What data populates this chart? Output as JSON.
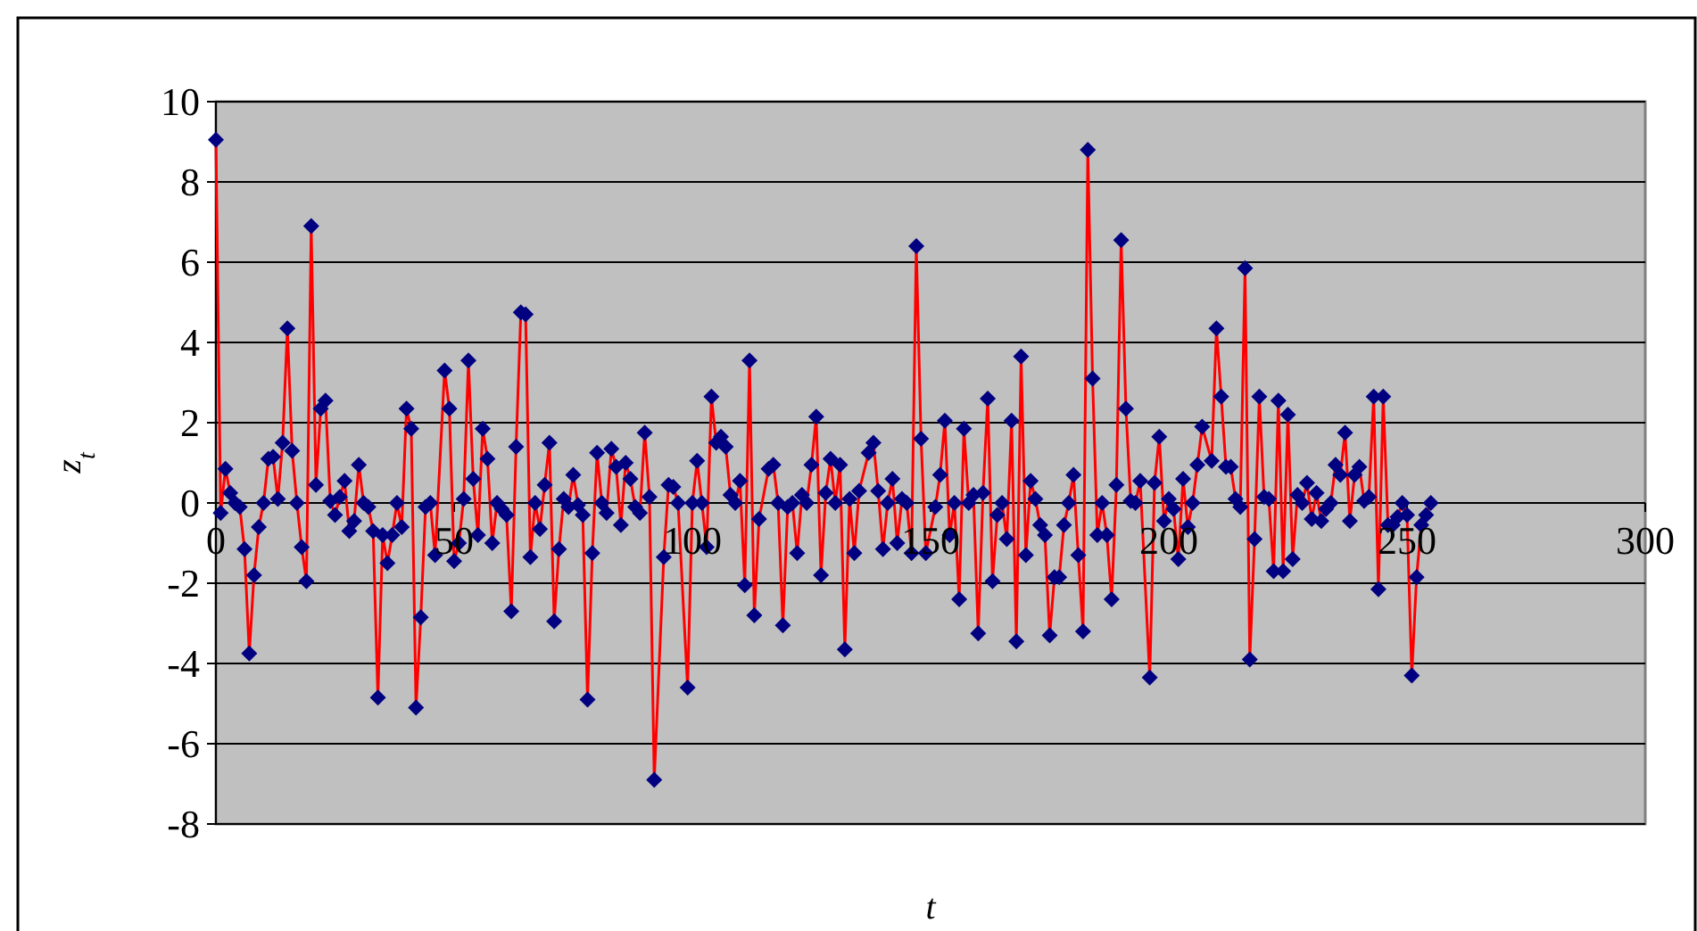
{
  "chart_data": {
    "type": "line",
    "xlabel": "t",
    "ylabel": "z$_{t}$",
    "xlim": [
      0,
      300
    ],
    "xticks": [
      0,
      50,
      100,
      150,
      200,
      250,
      300
    ],
    "ylim": [
      -8,
      10
    ],
    "yticks": [
      -8,
      -6,
      -4,
      -2,
      0,
      2,
      4,
      6,
      8,
      10
    ],
    "grid": "y",
    "marker": "diamond",
    "line_style": "solid",
    "x": [
      0,
      1,
      2,
      3,
      4,
      5,
      6,
      7,
      8,
      9,
      10,
      11,
      12,
      13,
      14,
      15,
      16,
      17,
      18,
      19,
      20,
      21,
      22,
      23,
      24,
      25,
      26,
      27,
      28,
      29,
      30,
      31,
      32,
      33,
      34,
      35,
      36,
      37,
      38,
      39,
      40,
      41,
      42,
      43,
      44,
      45,
      46,
      48,
      49,
      50,
      51,
      52,
      53,
      54,
      55,
      56,
      57,
      58,
      59,
      60,
      61,
      62,
      63,
      64,
      65,
      66,
      67,
      68,
      69,
      70,
      71,
      72,
      73,
      74,
      75,
      76,
      77,
      78,
      79,
      80,
      81,
      82,
      83,
      84,
      85,
      86,
      87,
      88,
      89,
      90,
      91,
      92,
      94,
      95,
      96,
      97,
      99,
      100,
      101,
      102,
      103,
      104,
      105,
      106,
      107,
      108,
      109,
      110,
      111,
      112,
      113,
      114,
      116,
      117,
      118,
      119,
      120,
      121,
      122,
      123,
      124,
      125,
      126,
      127,
      128,
      129,
      130,
      131,
      132,
      133,
      134,
      135,
      137,
      138,
      139,
      140,
      141,
      142,
      143,
      144,
      145,
      146,
      147,
      148,
      149,
      151,
      152,
      153,
      154,
      155,
      156,
      157,
      158,
      159,
      160,
      161,
      162,
      163,
      164,
      165,
      166,
      167,
      168,
      169,
      170,
      171,
      172,
      173,
      174,
      175,
      176,
      177,
      178,
      179,
      180,
      181,
      182,
      183,
      184,
      185,
      186,
      187,
      188,
      189,
      190,
      191,
      192,
      193,
      194,
      196,
      197,
      198,
      199,
      200,
      201,
      202,
      203,
      204,
      205,
      206,
      207,
      209,
      210,
      211,
      212,
      213,
      214,
      215,
      216,
      217,
      218,
      219,
      220,
      221,
      222,
      223,
      224,
      225,
      226,
      227,
      228,
      229,
      230,
      231,
      232,
      233,
      234,
      235,
      236,
      237,
      238,
      239,
      240,
      241,
      242,
      243,
      244,
      245,
      246,
      247,
      248,
      249,
      250,
      251,
      252,
      253,
      254,
      255
    ],
    "series": [
      {
        "color": "#ff0000",
        "values": [
          9.05,
          -0.25,
          0.85,
          0.25,
          0,
          -0.1,
          -1.15,
          -3.75,
          -1.8,
          -0.6,
          0,
          1.1,
          1.15,
          0.1,
          1.5,
          4.35,
          1.3,
          0,
          -1.1,
          -1.95,
          6.9,
          0.45,
          2.35,
          2.55,
          0.05,
          -0.3,
          0.15,
          0.55,
          -0.7,
          -0.45,
          0.95,
          0,
          -0.1,
          -0.7,
          -4.85,
          -0.8,
          -1.5,
          -0.8,
          0,
          -0.6,
          2.35,
          1.85,
          -5.1,
          -2.85,
          -0.1,
          0,
          -1.3,
          3.3,
          2.35,
          -1.45,
          -1,
          0.1,
          3.55,
          0.6,
          -0.8,
          1.85,
          1.1,
          -1,
          0,
          -0.15,
          -0.3,
          -2.7,
          1.4,
          4.75,
          4.7,
          -1.35,
          0,
          -0.65,
          0.45,
          1.5,
          -2.95,
          -1.15,
          0.1,
          -0.1,
          0.7,
          -0.05,
          -0.3,
          -4.9,
          -1.25,
          1.25,
          0,
          -0.25,
          1.35,
          0.9,
          -0.55,
          1,
          0.6,
          -0.1,
          -0.25,
          1.75,
          0.15,
          -6.9,
          -1.35,
          0.45,
          0.4,
          0,
          -4.6,
          0,
          1.05,
          0,
          -1.1,
          2.65,
          1.5,
          1.65,
          1.4,
          0.2,
          0,
          0.55,
          -2.05,
          3.55,
          -2.8,
          -0.4,
          0.85,
          0.95,
          0,
          -3.05,
          -0.1,
          0,
          -1.25,
          0.2,
          0,
          0.95,
          2.15,
          -1.8,
          0.25,
          1.1,
          0,
          0.95,
          -3.65,
          0.1,
          -1.25,
          0.3,
          1.25,
          1.5,
          0.3,
          -1.15,
          0,
          0.6,
          -1,
          0.1,
          0,
          -1.25,
          6.4,
          1.6,
          -1.25,
          -0.1,
          0.7,
          2.05,
          -0.8,
          0,
          -2.4,
          1.85,
          0,
          0.2,
          -3.25,
          0.25,
          2.6,
          -1.95,
          -0.3,
          0,
          -0.9,
          2.05,
          -3.45,
          3.65,
          -1.3,
          0.55,
          0.1,
          -0.55,
          -0.8,
          -3.3,
          -1.85,
          -1.85,
          -0.55,
          0,
          0.7,
          -1.3,
          -3.2,
          8.8,
          3.1,
          -0.8,
          0,
          -0.8,
          -2.4,
          0.45,
          6.55,
          2.35,
          0.05,
          0,
          0.55,
          -4.35,
          0.5,
          1.65,
          -0.45,
          0.1,
          -0.15,
          -1.4,
          0.6,
          -0.6,
          0,
          0.95,
          1.9,
          1.05,
          4.35,
          2.65,
          0.9,
          0.9,
          0.1,
          -0.1,
          5.85,
          -3.9,
          -0.9,
          2.65,
          0.15,
          0.1,
          -1.7,
          2.55,
          -1.7,
          2.2,
          -1.4,
          0.2,
          0,
          0.5,
          -0.4,
          0.25,
          -0.45,
          -0.15,
          0,
          0.95,
          0.7,
          1.75,
          -0.45,
          0.7,
          0.9,
          0.05,
          0.15,
          2.65,
          -2.15,
          2.65,
          -0.55,
          -0.55,
          -0.35,
          0,
          -0.3,
          -4.3,
          -1.85,
          -0.55,
          -0.3,
          0
        ]
      }
    ]
  }
}
